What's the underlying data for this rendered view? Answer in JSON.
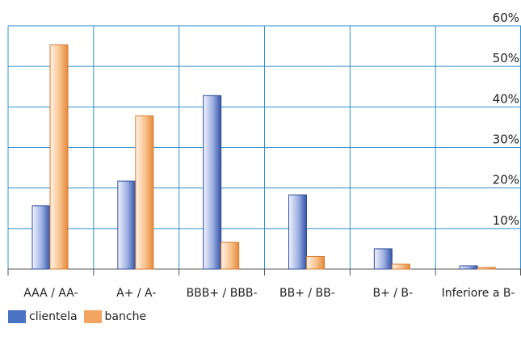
{
  "chart_data": {
    "type": "bar",
    "categories": [
      "AAA / AA-",
      "A+ / A-",
      "BBB+ / BBB-",
      "BB+ / BB-",
      "B+ / B-",
      "Inferiore a B-"
    ],
    "series": [
      {
        "name": "clientela",
        "values": [
          15.6,
          21.7,
          42.8,
          18.3,
          5.0,
          0.8
        ]
      },
      {
        "name": "banche",
        "values": [
          55.3,
          37.8,
          6.6,
          3.1,
          1.2,
          0.4
        ]
      }
    ],
    "ylim": [
      0,
      60
    ],
    "yticks": [
      10,
      20,
      30,
      40,
      50,
      60
    ],
    "ytick_labels": [
      "10%",
      "20%",
      "30%",
      "40%",
      "50%",
      "60%"
    ],
    "grid": true,
    "legend_position": "bottom-left",
    "colors": {
      "clientela": "#4c72c4",
      "banche": "#f3a461",
      "grid": "#2f8fd0"
    }
  }
}
